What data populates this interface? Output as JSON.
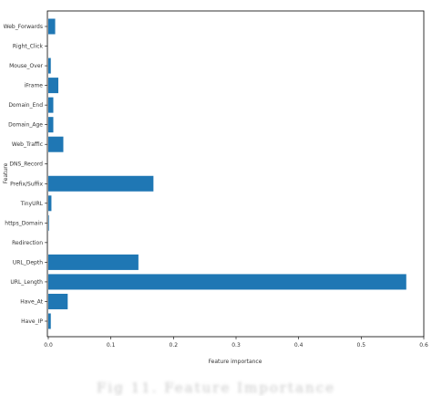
{
  "chart_data": {
    "type": "bar",
    "orientation": "horizontal",
    "categories": [
      "Have_IP",
      "Have_At",
      "URL_Length",
      "URL_Depth",
      "Redirection",
      "https_Domain",
      "TinyURL",
      "Prefix/Suffix",
      "DNS_Record",
      "Web_Traffic",
      "Domain_Age",
      "Domain_End",
      "iFrame",
      "Mouse_Over",
      "Right_Click",
      "Web_Forwards"
    ],
    "values": [
      0.004,
      0.031,
      0.572,
      0.144,
      0.0,
      0.001,
      0.005,
      0.168,
      0.0,
      0.024,
      0.008,
      0.008,
      0.016,
      0.004,
      0.0,
      0.011
    ],
    "xlabel": "Feature importance",
    "ylabel": "Feature",
    "xlim": [
      0,
      0.6
    ],
    "xticks": [
      0.0,
      0.1,
      0.2,
      0.3,
      0.4,
      0.5,
      0.6
    ],
    "xtick_labels": [
      "0.0",
      "0.1",
      "0.2",
      "0.3",
      "0.4",
      "0.5",
      "0.6"
    ],
    "bar_color": "#1f77b4",
    "grid": false,
    "legend": "none"
  },
  "caption": "Fig 11. Feature Importance"
}
